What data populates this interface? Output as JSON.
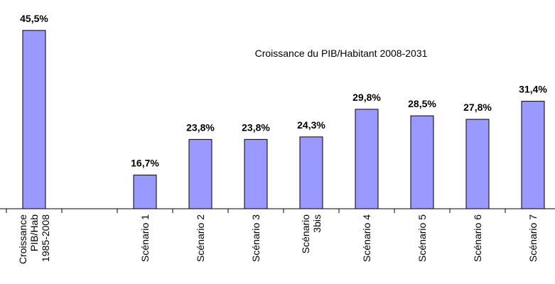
{
  "chart_data": {
    "type": "bar",
    "title": "Croissance du PIB/Habitant 2008-2031",
    "categories": [
      "Croissance\nPIB/Hab\n1985-2008",
      null,
      "Scénario 1",
      "Scénario 2",
      "Scénario 3",
      "Scénario\n3bis",
      "Scénario 4",
      "Scénario 5",
      "Scénario 6",
      "Scénario 7"
    ],
    "values": [
      45.5,
      null,
      16.7,
      23.8,
      23.8,
      24.3,
      29.8,
      28.5,
      27.8,
      31.4
    ],
    "value_labels": [
      "45,5%",
      null,
      "16,7%",
      "23,8%",
      "23,8%",
      "24,3%",
      "29,8%",
      "28,5%",
      "27,8%",
      "31,4%"
    ],
    "color": "#9999ff",
    "ylim": [
      10,
      50
    ]
  }
}
